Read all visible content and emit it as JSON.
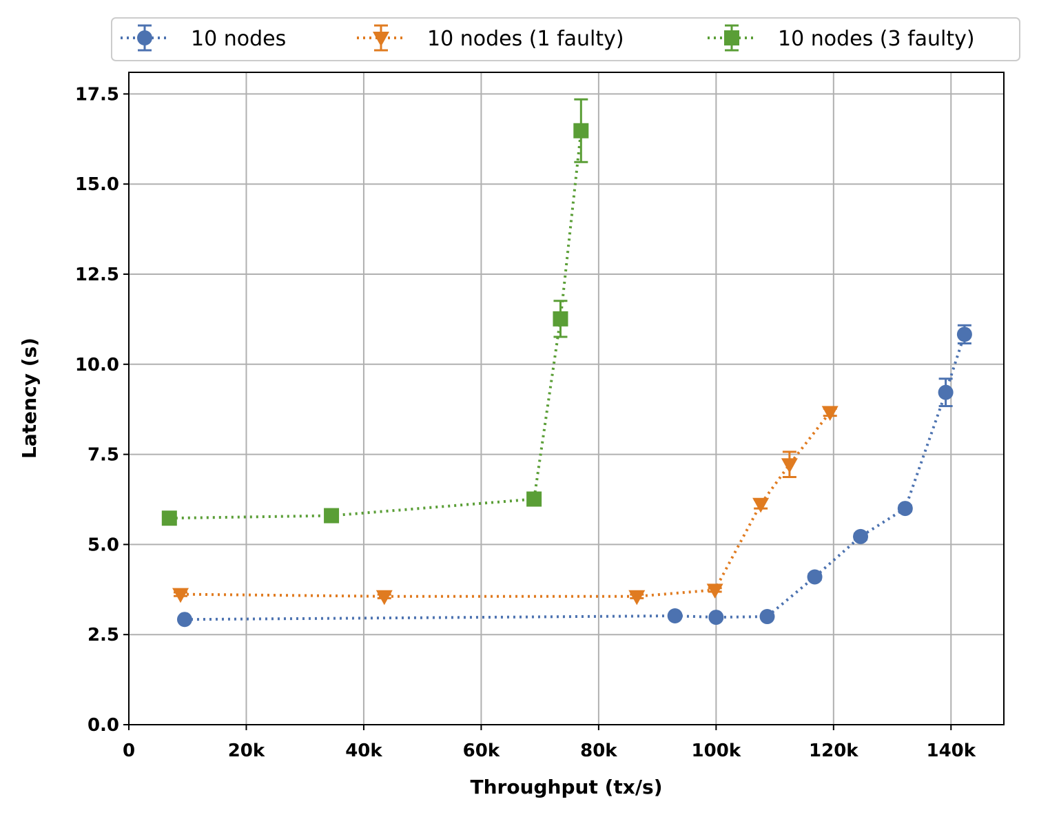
{
  "chart_data": {
    "type": "line",
    "xlabel": "Throughput (tx/s)",
    "ylabel": "Latency (s)",
    "xlim": [
      0,
      149000
    ],
    "ylim": [
      0,
      18.1
    ],
    "xticks": [
      0,
      20000,
      40000,
      60000,
      80000,
      100000,
      120000,
      140000
    ],
    "xtick_labels": [
      "0",
      "20k",
      "40k",
      "60k",
      "80k",
      "100k",
      "120k",
      "140k"
    ],
    "yticks": [
      0,
      2.5,
      5,
      7.5,
      10,
      12.5,
      15,
      17.5
    ],
    "ytick_labels": [
      "0.0",
      "2.5",
      "5.0",
      "7.5",
      "10.0",
      "12.5",
      "15.0",
      "17.5"
    ],
    "grid": true,
    "legend_position": "top, above plot",
    "series": [
      {
        "name": "10 nodes",
        "color": "#4c72b0",
        "marker": "circle",
        "line_style": "dotted",
        "points": [
          {
            "x": 9500,
            "y": 2.92,
            "err": 0.05
          },
          {
            "x": 93000,
            "y": 3.02,
            "err": 0.05
          },
          {
            "x": 100000,
            "y": 2.98,
            "err": 0.05
          },
          {
            "x": 108700,
            "y": 3.0,
            "err": 0.05
          },
          {
            "x": 116800,
            "y": 4.1,
            "err": 0.08
          },
          {
            "x": 124600,
            "y": 5.22,
            "err": 0.08
          },
          {
            "x": 132200,
            "y": 6.0,
            "err": 0.08
          },
          {
            "x": 139100,
            "y": 9.22,
            "err": 0.38
          },
          {
            "x": 142300,
            "y": 10.83,
            "err": 0.25
          }
        ]
      },
      {
        "name": "10 nodes (1 faulty)",
        "color": "#e07b20",
        "marker": "triangle-down",
        "line_style": "dotted",
        "points": [
          {
            "x": 8800,
            "y": 3.62,
            "err": 0.05
          },
          {
            "x": 43500,
            "y": 3.56,
            "err": 0.05
          },
          {
            "x": 86500,
            "y": 3.56,
            "err": 0.05
          },
          {
            "x": 99800,
            "y": 3.74,
            "err": 0.05
          },
          {
            "x": 107600,
            "y": 6.12,
            "err": 0.12
          },
          {
            "x": 112500,
            "y": 7.22,
            "err": 0.35
          },
          {
            "x": 119400,
            "y": 8.67,
            "err": 0.1
          }
        ]
      },
      {
        "name": "10 nodes (3 faulty)",
        "color": "#5a9e36",
        "marker": "square",
        "line_style": "dotted",
        "points": [
          {
            "x": 6900,
            "y": 5.73,
            "err": 0.05
          },
          {
            "x": 34500,
            "y": 5.8,
            "err": 0.05
          },
          {
            "x": 69000,
            "y": 6.26,
            "err": 0.05
          },
          {
            "x": 73500,
            "y": 11.26,
            "err": 0.5
          },
          {
            "x": 77000,
            "y": 16.48,
            "err": 0.87
          }
        ]
      }
    ]
  }
}
